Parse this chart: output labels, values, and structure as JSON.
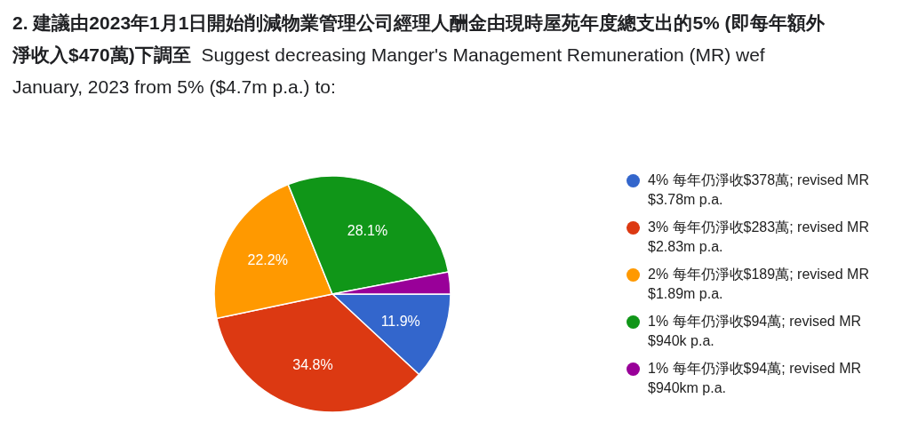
{
  "chart_data": {
    "type": "pie",
    "title": "2. 建議由2023年1月1日開始削減物業管理公司經理人酬金由現時屋苑年度總支出的5% (即每年額外淨收入$470萬)下調至",
    "subtitle": "Suggest decreasing Manger's Management Remuneration (MR) wef January, 2023 from 5% ($4.7m p.a.) to:",
    "categories": [
      "4% 每年仍淨收$378萬; revised MR $3.78m p.a.",
      "3% 每年仍淨收$283萬; revised MR $2.83m p.a.",
      "2% 每年仍淨收$189萬; revised MR $1.89m p.a.",
      "1% 每年仍淨收$94萬; revised MR $940k p.a.",
      "1% 每年仍淨收$94萬; revised MR $940km p.a."
    ],
    "values": [
      11.9,
      34.8,
      22.2,
      28.1,
      3.0
    ],
    "colors": [
      "#3366cc",
      "#dc3912",
      "#ff9900",
      "#109618",
      "#990099"
    ],
    "value_labels": [
      "11.9%",
      "34.8%",
      "22.2%",
      "28.1%",
      null
    ],
    "legend": "right"
  }
}
